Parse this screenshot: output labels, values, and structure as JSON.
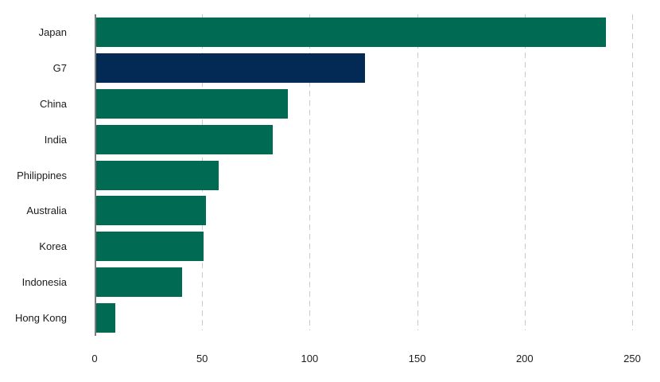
{
  "chart_data": {
    "type": "bar",
    "orientation": "horizontal",
    "title": "",
    "xlabel": "",
    "ylabel": "",
    "categories": [
      "Japan",
      "G7",
      "China",
      "India",
      "Philippines",
      "Australia",
      "Korea",
      "Indonesia",
      "Hong Kong"
    ],
    "values": [
      237,
      125,
      89,
      82,
      57,
      51,
      50,
      40,
      9
    ],
    "highlight_category": "G7",
    "highlight_index": 1,
    "xlim": [
      0,
      250
    ],
    "x_ticks": [
      0,
      50,
      100,
      150,
      200,
      250
    ],
    "grid": "vertical-dashed",
    "legend": "none",
    "colors": {
      "bar_default": "#006a52",
      "bar_highlight": "#032a55",
      "axis_line": "#7d7d7d",
      "gridline": "#c9c9c9",
      "text": "#1c1c1c",
      "background": "#ffffff"
    }
  }
}
